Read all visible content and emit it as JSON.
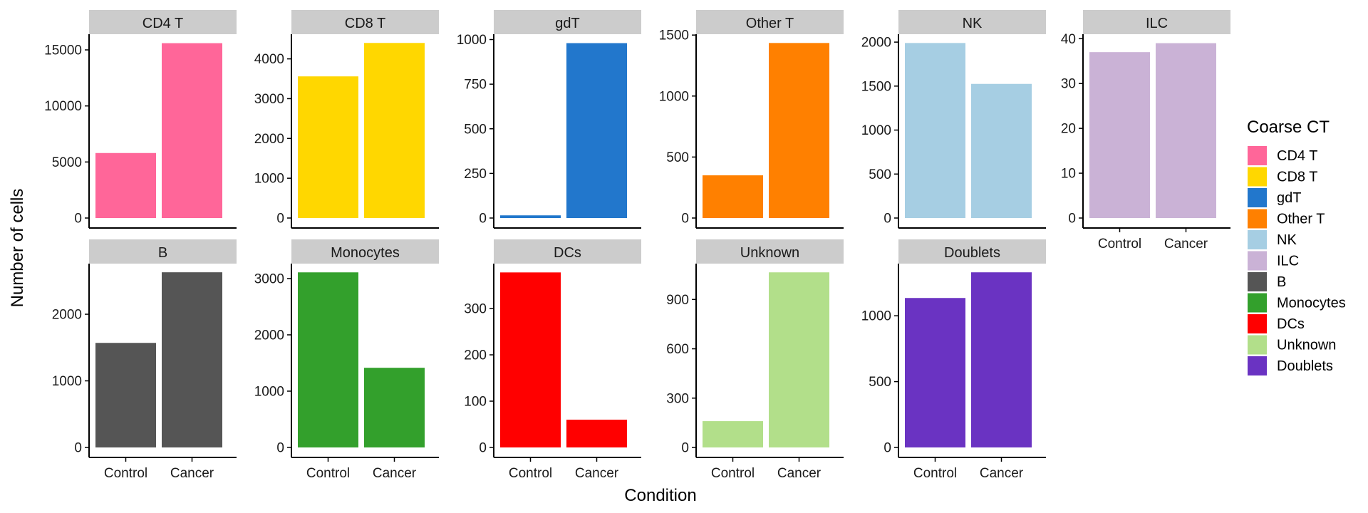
{
  "chart_data": {
    "type": "bar",
    "facet_layout": "wrap",
    "categories": [
      "Control",
      "Cancer"
    ],
    "xlabel": "Condition",
    "ylabel": "Number of cells",
    "legend": {
      "title": "Coarse CT",
      "position": "right",
      "entries": [
        {
          "label": "CD4 T",
          "color": "#FF6699"
        },
        {
          "label": "CD8 T",
          "color": "#FFD700"
        },
        {
          "label": "gdT",
          "color": "#2277CC"
        },
        {
          "label": "Other T",
          "color": "#FF8000"
        },
        {
          "label": "NK",
          "color": "#A6CEE3"
        },
        {
          "label": "ILC",
          "color": "#CAB2D6"
        },
        {
          "label": "B",
          "color": "#555555"
        },
        {
          "label": "Monocytes",
          "color": "#33A02C"
        },
        {
          "label": "DCs",
          "color": "#FF0000"
        },
        {
          "label": "Unknown",
          "color": "#B2DF8A"
        },
        {
          "label": "Doublets",
          "color": "#6A33C2"
        }
      ]
    },
    "panels": [
      {
        "title": "CD4 T",
        "values": [
          5800,
          15600
        ],
        "ylim": [
          0,
          16400
        ],
        "ticks": [
          0,
          5000,
          10000,
          15000
        ],
        "tick_labels": [
          "0",
          "5000",
          "10000",
          "15000"
        ],
        "color": "#FF6699"
      },
      {
        "title": "CD8 T",
        "values": [
          3560,
          4400
        ],
        "ylim": [
          0,
          4620
        ],
        "ticks": [
          0,
          1000,
          2000,
          3000,
          4000
        ],
        "tick_labels": [
          "0",
          "1000",
          "2000",
          "3000",
          "4000"
        ],
        "color": "#FFD700"
      },
      {
        "title": "gdT",
        "values": [
          15,
          980
        ],
        "ylim": [
          0,
          1030
        ],
        "ticks": [
          0,
          250,
          500,
          750,
          1000
        ],
        "tick_labels": [
          "0",
          "250",
          "500",
          "750",
          "1000"
        ],
        "color": "#2277CC"
      },
      {
        "title": "Other T",
        "values": [
          350,
          1435
        ],
        "ylim": [
          0,
          1507
        ],
        "ticks": [
          0,
          500,
          1000,
          1500
        ],
        "tick_labels": [
          "0",
          "500",
          "1000",
          "1500"
        ],
        "color": "#FF8000"
      },
      {
        "title": "NK",
        "values": [
          1990,
          1525
        ],
        "ylim": [
          0,
          2090
        ],
        "ticks": [
          0,
          500,
          1000,
          1500,
          2000
        ],
        "tick_labels": [
          "0",
          "500",
          "1000",
          "1500",
          "2000"
        ],
        "color": "#A6CEE3"
      },
      {
        "title": "ILC",
        "values": [
          37,
          39
        ],
        "ylim": [
          0,
          41
        ],
        "ticks": [
          0,
          10,
          20,
          30,
          40
        ],
        "tick_labels": [
          "0",
          "10",
          "20",
          "30",
          "40"
        ],
        "color": "#CAB2D6"
      },
      {
        "title": "B",
        "values": [
          1570,
          2630
        ],
        "ylim": [
          0,
          2760
        ],
        "ticks": [
          0,
          1000,
          2000
        ],
        "tick_labels": [
          "0",
          "1000",
          "2000"
        ],
        "color": "#555555"
      },
      {
        "title": "Monocytes",
        "values": [
          3110,
          1415
        ],
        "ylim": [
          0,
          3265
        ],
        "ticks": [
          0,
          1000,
          2000,
          3000
        ],
        "tick_labels": [
          "0",
          "1000",
          "2000",
          "3000"
        ],
        "color": "#33A02C"
      },
      {
        "title": "DCs",
        "values": [
          378,
          60
        ],
        "ylim": [
          0,
          397
        ],
        "ticks": [
          0,
          100,
          200,
          300
        ],
        "tick_labels": [
          "0",
          "100",
          "200",
          "300"
        ],
        "color": "#FF0000"
      },
      {
        "title": "Unknown",
        "values": [
          160,
          1065
        ],
        "ylim": [
          0,
          1118
        ],
        "ticks": [
          0,
          300,
          600,
          900
        ],
        "tick_labels": [
          "0",
          "300",
          "600",
          "900"
        ],
        "color": "#B2DF8A"
      },
      {
        "title": "Doublets",
        "values": [
          1135,
          1330
        ],
        "ylim": [
          0,
          1396
        ],
        "ticks": [
          0,
          500,
          1000
        ],
        "tick_labels": [
          "0",
          "500",
          "1000"
        ],
        "color": "#6A33C2"
      }
    ]
  }
}
